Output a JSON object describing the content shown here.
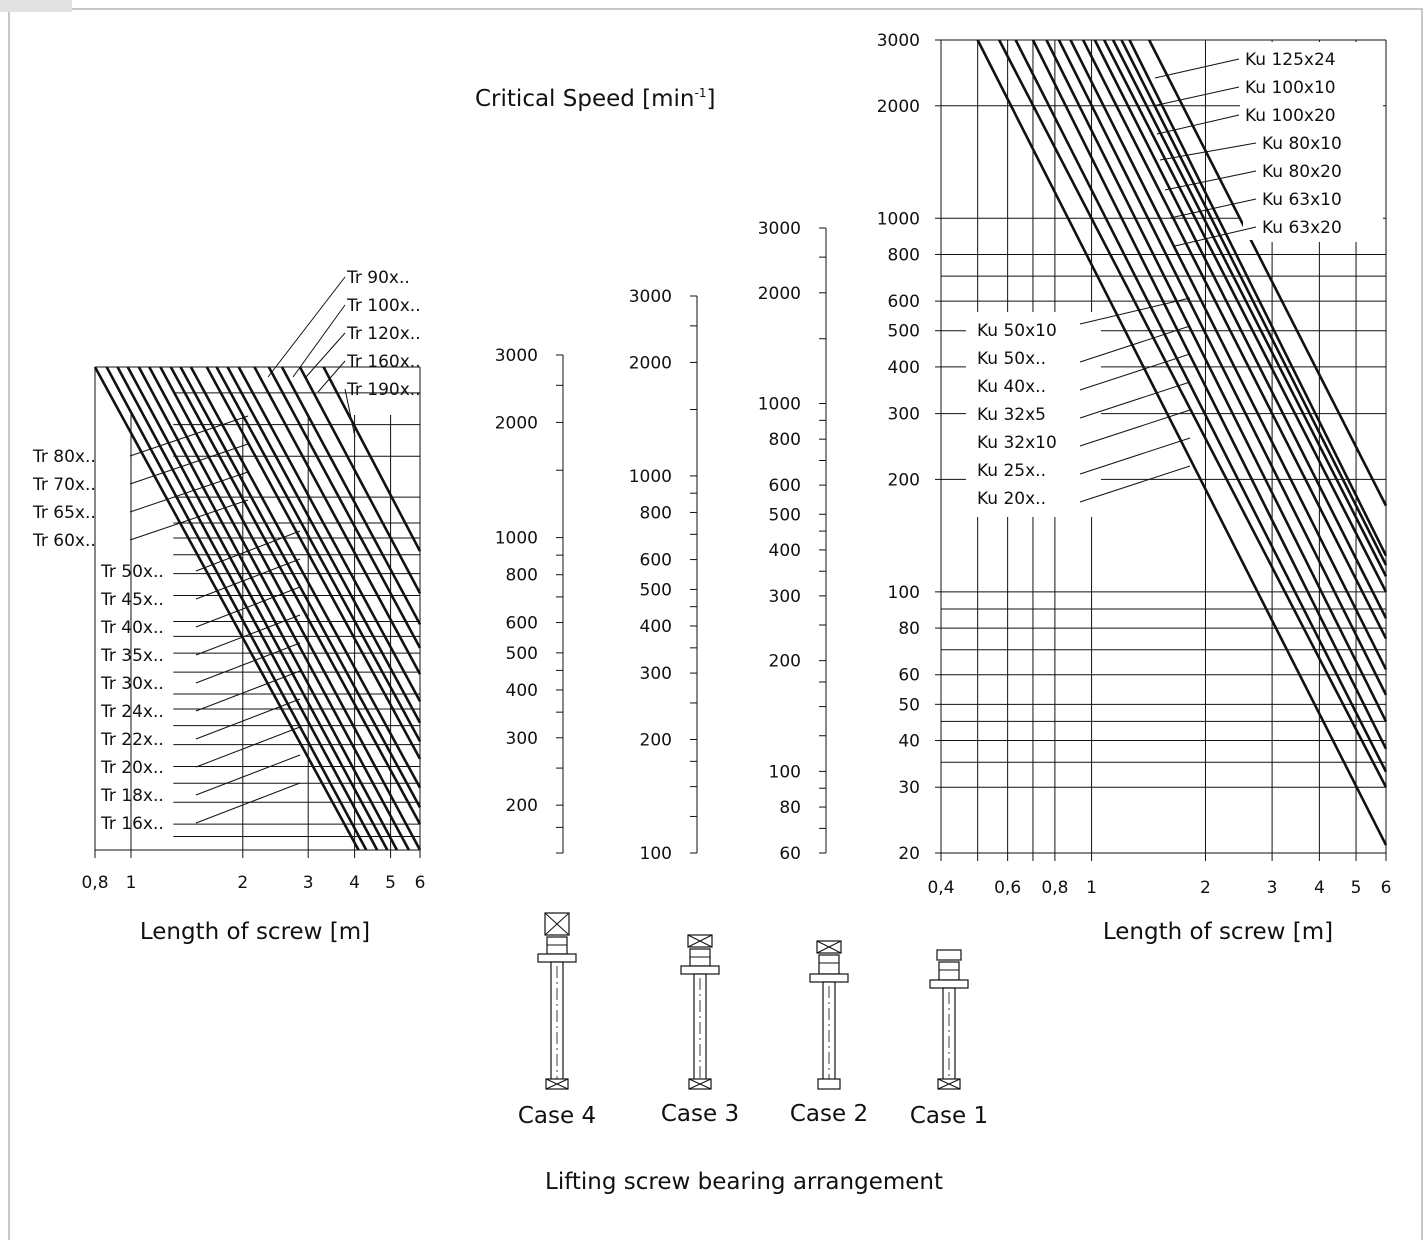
{
  "title": "Critical Speed [min⁻¹]",
  "footer": "Lifting screw bearing arrangement",
  "cases": [
    "Case 4",
    "Case 3",
    "Case 2",
    "Case 1"
  ],
  "scale_ticks": [
    [
      "3000",
      "2000",
      "1000",
      "800",
      "600",
      "500",
      "400",
      "300",
      "200"
    ],
    [
      "3000",
      "2000",
      "1000",
      "800",
      "600",
      "500",
      "400",
      "300",
      "200",
      "100"
    ],
    [
      "3000",
      "2000",
      "1000",
      "800",
      "600",
      "500",
      "400",
      "300",
      "200",
      "100",
      "80",
      "60"
    ]
  ],
  "chart_data": [
    {
      "type": "line",
      "title": "",
      "xlabel": "Length of screw [m]",
      "ylabel": "Critical Speed [min⁻¹]",
      "x_scale": "log",
      "y_scale": "log",
      "xlim": [
        0.8,
        6
      ],
      "ylim": [
        100,
        3000
      ],
      "x_ticks": [
        "0,8",
        "1",
        "2",
        "3",
        "4",
        "5",
        "6"
      ],
      "labels_left": [
        "Tr 80x..",
        "Tr 70x..",
        "Tr 65x..",
        "Tr 60x..",
        "Tr 50x..",
        "Tr 45x..",
        "Tr 40x..",
        "Tr 35x..",
        "Tr 30x..",
        "Tr 24x..",
        "Tr 22x..",
        "Tr 20x..",
        "Tr 18x..",
        "Tr 16x.."
      ],
      "labels_top": [
        "Tr 90x..",
        "Tr 100x..",
        "Tr 120x..",
        "Tr 160x..",
        "Tr 190x.."
      ],
      "series": [
        {
          "name": "Tr 16x..",
          "x": [
            0.8,
            4.1
          ],
          "y": [
            3000,
            100
          ]
        },
        {
          "name": "Tr 18x..",
          "x": [
            0.86,
            4.3
          ],
          "y": [
            3000,
            100
          ]
        },
        {
          "name": "Tr 20x..",
          "x": [
            0.92,
            4.6
          ],
          "y": [
            3000,
            100
          ]
        },
        {
          "name": "Tr 22x..",
          "x": [
            0.98,
            4.9
          ],
          "y": [
            3000,
            100
          ]
        },
        {
          "name": "Tr 24x..",
          "x": [
            1.05,
            5.2
          ],
          "y": [
            3000,
            100
          ]
        },
        {
          "name": "Tr 30x..",
          "x": [
            1.12,
            5.6
          ],
          "y": [
            3000,
            100
          ]
        },
        {
          "name": "Tr 35x..",
          "x": [
            1.2,
            6
          ],
          "y": [
            3000,
            100
          ]
        },
        {
          "name": "Tr 40x..",
          "x": [
            1.28,
            6
          ],
          "y": [
            3000,
            120
          ]
        },
        {
          "name": "Tr 45x..",
          "x": [
            1.36,
            6
          ],
          "y": [
            3000,
            135
          ]
        },
        {
          "name": "Tr 50x..",
          "x": [
            1.45,
            6
          ],
          "y": [
            3000,
            155
          ]
        },
        {
          "name": "Tr 60x..",
          "x": [
            1.6,
            6
          ],
          "y": [
            3000,
            190
          ]
        },
        {
          "name": "Tr 65x..",
          "x": [
            1.7,
            6
          ],
          "y": [
            3000,
            215
          ]
        },
        {
          "name": "Tr 70x..",
          "x": [
            1.82,
            6
          ],
          "y": [
            3000,
            245
          ]
        },
        {
          "name": "Tr 80x..",
          "x": [
            1.95,
            6
          ],
          "y": [
            3000,
            285
          ]
        },
        {
          "name": "Tr 90x..",
          "x": [
            2.15,
            6
          ],
          "y": [
            3000,
            345
          ]
        },
        {
          "name": "Tr 100x..",
          "x": [
            2.35,
            6
          ],
          "y": [
            3000,
            415
          ]
        },
        {
          "name": "Tr 120x..",
          "x": [
            2.55,
            6
          ],
          "y": [
            3000,
            490
          ]
        },
        {
          "name": "Tr 160x..",
          "x": [
            2.85,
            6
          ],
          "y": [
            3000,
            610
          ]
        },
        {
          "name": "Tr 190x..",
          "x": [
            3.3,
            6
          ],
          "y": [
            3000,
            820
          ]
        }
      ]
    },
    {
      "type": "line",
      "title": "",
      "xlabel": "Length of screw [m]",
      "ylabel": "Critical Speed [min⁻¹]",
      "x_scale": "log",
      "y_scale": "log",
      "xlim": [
        0.4,
        6
      ],
      "ylim": [
        20,
        3000
      ],
      "x_ticks": [
        "0,4",
        "0,6",
        "0,8",
        "1",
        "2",
        "3",
        "4",
        "5",
        "6"
      ],
      "y_ticks": [
        "3000",
        "2000",
        "1000",
        "800",
        "600",
        "500",
        "400",
        "300",
        "200",
        "100",
        "80",
        "60",
        "50",
        "40",
        "30",
        "20"
      ],
      "labels_top": [
        "Ku 125x24",
        "Ku 100x10",
        "Ku 100x20",
        "Ku 80x10",
        "Ku 80x20",
        "Ku 63x10",
        "Ku 63x20"
      ],
      "labels_left": [
        "Ku 50x10",
        "Ku 50x..",
        "Ku 40x..",
        "Ku 32x5",
        "Ku 32x10",
        "Ku 25x..",
        "Ku 20x.."
      ],
      "series": [
        {
          "name": "Ku 20x..",
          "x": [
            0.5,
            6
          ],
          "y": [
            3000,
            21
          ]
        },
        {
          "name": "Ku 25x..",
          "x": [
            0.57,
            6
          ],
          "y": [
            3000,
            30
          ]
        },
        {
          "name": "Ku 32x10",
          "x": [
            0.63,
            6
          ],
          "y": [
            3000,
            33
          ]
        },
        {
          "name": "Ku 32x5",
          "x": [
            0.7,
            6
          ],
          "y": [
            3000,
            38
          ]
        },
        {
          "name": "Ku 40x..",
          "x": [
            0.76,
            6
          ],
          "y": [
            3000,
            45
          ]
        },
        {
          "name": "Ku 50x..",
          "x": [
            0.82,
            6
          ],
          "y": [
            3000,
            53
          ]
        },
        {
          "name": "Ku 50x10",
          "x": [
            0.88,
            6
          ],
          "y": [
            3000,
            62
          ]
        },
        {
          "name": "Ku 63x20",
          "x": [
            0.95,
            6
          ],
          "y": [
            3000,
            75
          ]
        },
        {
          "name": "Ku 63x10",
          "x": [
            1.02,
            6
          ],
          "y": [
            3000,
            85
          ]
        },
        {
          "name": "Ku 80x20",
          "x": [
            1.08,
            6
          ],
          "y": [
            3000,
            100
          ]
        },
        {
          "name": "Ku 80x10",
          "x": [
            1.14,
            6
          ],
          "y": [
            3000,
            110
          ]
        },
        {
          "name": "Ku 100x20",
          "x": [
            1.2,
            6
          ],
          "y": [
            3000,
            118
          ]
        },
        {
          "name": "Ku 100x10",
          "x": [
            1.26,
            6
          ],
          "y": [
            3000,
            125
          ]
        },
        {
          "name": "Ku 125x24",
          "x": [
            1.42,
            6
          ],
          "y": [
            3000,
            170
          ]
        }
      ]
    }
  ]
}
